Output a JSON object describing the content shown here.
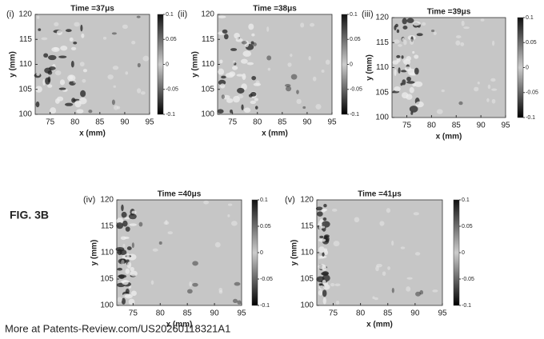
{
  "figure_label": "FIG. 3B",
  "footer": "More at Patents-Review.com/US20260118321A1",
  "chart_data": [
    {
      "type": "heatmap",
      "panel": "(i)",
      "title": "Time =37μs",
      "xlabel": "x (mm)",
      "ylabel": "y (mm)",
      "xlim": [
        72,
        95
      ],
      "xticks": [
        75,
        80,
        85,
        90,
        95
      ],
      "ylim": [
        100,
        120
      ],
      "yticks": [
        100,
        105,
        110,
        115,
        120
      ],
      "clim": [
        -0.1,
        0.1
      ],
      "colorbar_ticks": [
        0.1,
        0.05,
        0,
        -0.05,
        -0.1
      ]
    },
    {
      "type": "heatmap",
      "panel": "(ii)",
      "title": "Time =38μs",
      "xlabel": "x (mm)",
      "ylabel": "y (mm)",
      "xlim": [
        72,
        95
      ],
      "xticks": [
        75,
        80,
        85,
        90,
        95
      ],
      "ylim": [
        100,
        120
      ],
      "yticks": [
        100,
        105,
        110,
        115,
        120
      ],
      "clim": [
        -0.1,
        0.1
      ],
      "colorbar_ticks": [
        0.1,
        0.05,
        0,
        -0.05,
        -0.1
      ]
    },
    {
      "type": "heatmap",
      "panel": "(iii)",
      "title": "Time =39μs",
      "xlabel": "x (mm)",
      "ylabel": "y (mm)",
      "xlim": [
        72,
        95
      ],
      "xticks": [
        75,
        80,
        85,
        90,
        95
      ],
      "ylim": [
        100,
        120
      ],
      "yticks": [
        100,
        105,
        110,
        115,
        120
      ],
      "clim": [
        -0.1,
        0.1
      ],
      "colorbar_ticks": [
        0.1,
        0.05,
        0,
        -0.05,
        -0.1
      ]
    },
    {
      "type": "heatmap",
      "panel": "(iv)",
      "title": "Time =40μs",
      "xlabel": "x (mm)",
      "ylabel": "y (mm)",
      "xlim": [
        72,
        95
      ],
      "xticks": [
        75,
        80,
        85,
        90,
        95
      ],
      "ylim": [
        100,
        120
      ],
      "yticks": [
        100,
        105,
        110,
        115,
        120
      ],
      "clim": [
        -0.1,
        0.1
      ],
      "colorbar_ticks": [
        0.1,
        0.05,
        0,
        -0.05,
        -0.1
      ]
    },
    {
      "type": "heatmap",
      "panel": "(v)",
      "title": "Time =41μs",
      "xlabel": "x (mm)",
      "ylabel": "y (mm)",
      "xlim": [
        72,
        95
      ],
      "xticks": [
        75,
        80,
        85,
        90,
        95
      ],
      "ylim": [
        100,
        120
      ],
      "yticks": [
        100,
        105,
        110,
        115,
        120
      ],
      "clim": [
        -0.1,
        0.1
      ],
      "colorbar_ticks": [
        0.1,
        0.05,
        0,
        -0.05,
        -0.1
      ]
    }
  ]
}
